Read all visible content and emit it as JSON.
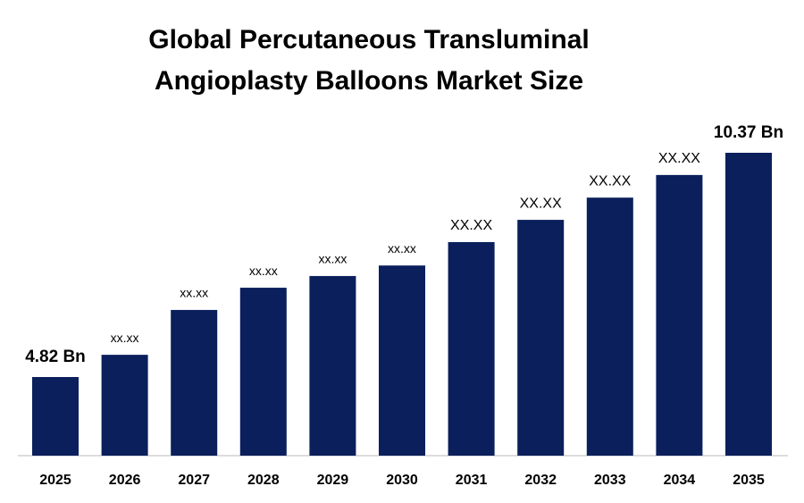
{
  "chart_data": {
    "type": "bar",
    "title": [
      "Global Percutaneous Transluminal",
      "Angioplasty Balloons Market Size"
    ],
    "categories": [
      "2025",
      "2026",
      "2027",
      "2028",
      "2029",
      "2030",
      "2031",
      "2032",
      "2033",
      "2034",
      "2035"
    ],
    "values": [
      4.82,
      5.37,
      6.48,
      7.03,
      7.32,
      7.58,
      8.16,
      8.71,
      9.26,
      9.82,
      10.37
    ],
    "value_labels": [
      "4.82 Bn",
      "xx.xx",
      "xx.xx",
      "xx.xx",
      "xx.xx",
      "xx.xx",
      "XX.XX",
      "XX.XX",
      "XX.XX",
      "XX.XX",
      "10.37 Bn"
    ],
    "color": "#0b1f5c"
  }
}
